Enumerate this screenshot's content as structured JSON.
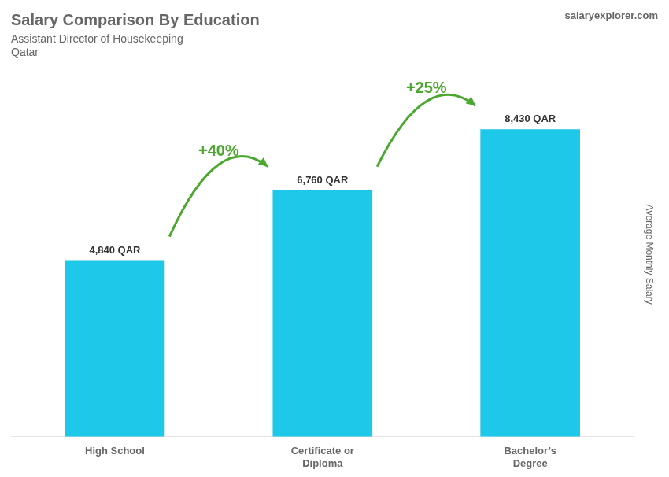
{
  "chart_data": {
    "type": "bar",
    "title": "Salary Comparison By Education",
    "subtitle": [
      "Assistant Director of Housekeeping",
      "Qatar"
    ],
    "source": "salaryexplorer.com",
    "categories": [
      "High School",
      "Certificate or\nDiploma",
      "Bachelor’s\nDegree"
    ],
    "values": [
      4840,
      6760,
      8430
    ],
    "value_labels": [
      "4,840 QAR",
      "6,760 QAR",
      "8,430 QAR"
    ],
    "data_labels": true,
    "color": "#1EC8E8",
    "ylabel": "Average Monthly Salary",
    "ylim": [
      0,
      10000
    ],
    "yticks": [],
    "tick_labels": "x",
    "grid": false,
    "annotations": [
      "+40%",
      "+25%"
    ]
  }
}
